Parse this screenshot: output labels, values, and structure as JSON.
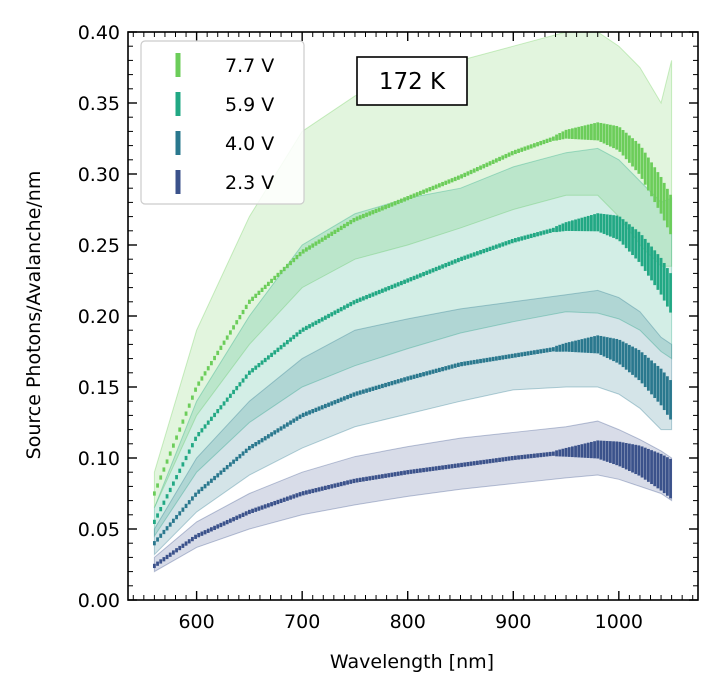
{
  "chart_data": {
    "type": "scatter",
    "xlabel": "Wavelength [nm]",
    "ylabel": "Source Photons/Avalanche/nm",
    "xlim": [
      535,
      1075
    ],
    "ylim": [
      0.0,
      0.4
    ],
    "x_ticks": [
      600,
      700,
      800,
      900,
      1000
    ],
    "y_ticks": [
      0.0,
      0.05,
      0.1,
      0.15,
      0.2,
      0.25,
      0.3,
      0.35,
      0.4
    ],
    "x_tick_labels": [
      "600",
      "700",
      "800",
      "900",
      "1000"
    ],
    "y_tick_labels": [
      "0.00",
      "0.05",
      "0.10",
      "0.15",
      "0.20",
      "0.25",
      "0.30",
      "0.35",
      "0.40"
    ],
    "annotation": "172 K",
    "legend_position": "upper-left",
    "x": [
      560,
      600,
      650,
      700,
      750,
      800,
      850,
      900,
      950,
      980,
      1000,
      1020,
      1040,
      1050
    ],
    "series": [
      {
        "name": "7.7 V",
        "color": "#6ccd5a",
        "values": [
          0.075,
          0.15,
          0.21,
          0.245,
          0.268,
          0.283,
          0.298,
          0.315,
          0.328,
          0.33,
          0.325,
          0.31,
          0.285,
          0.27
        ],
        "upper": [
          0.09,
          0.19,
          0.27,
          0.33,
          0.355,
          0.37,
          0.38,
          0.39,
          0.4,
          0.4,
          0.39,
          0.375,
          0.35,
          0.38
        ],
        "lower": [
          0.065,
          0.13,
          0.18,
          0.22,
          0.24,
          0.25,
          0.262,
          0.275,
          0.285,
          0.285,
          0.27,
          0.25,
          0.235,
          0.235
        ]
      },
      {
        "name": "5.9 V",
        "color": "#22a884",
        "values": [
          0.055,
          0.115,
          0.16,
          0.19,
          0.21,
          0.225,
          0.24,
          0.253,
          0.263,
          0.266,
          0.262,
          0.248,
          0.228,
          0.215
        ],
        "upper": [
          0.065,
          0.14,
          0.2,
          0.25,
          0.272,
          0.283,
          0.29,
          0.305,
          0.315,
          0.318,
          0.31,
          0.295,
          0.28,
          0.283
        ],
        "lower": [
          0.045,
          0.09,
          0.125,
          0.15,
          0.165,
          0.177,
          0.188,
          0.196,
          0.203,
          0.202,
          0.198,
          0.19,
          0.175,
          0.17
        ]
      },
      {
        "name": "4.0 V",
        "color": "#2a788e",
        "values": [
          0.04,
          0.075,
          0.107,
          0.13,
          0.145,
          0.156,
          0.166,
          0.172,
          0.178,
          0.18,
          0.175,
          0.165,
          0.15,
          0.14
        ],
        "upper": [
          0.05,
          0.1,
          0.14,
          0.17,
          0.19,
          0.198,
          0.205,
          0.21,
          0.215,
          0.218,
          0.213,
          0.203,
          0.185,
          0.18
        ],
        "lower": [
          0.032,
          0.062,
          0.088,
          0.107,
          0.122,
          0.131,
          0.14,
          0.148,
          0.15,
          0.15,
          0.145,
          0.135,
          0.12,
          0.12
        ]
      },
      {
        "name": "2.3 V",
        "color": "#3b528b",
        "values": [
          0.024,
          0.045,
          0.062,
          0.075,
          0.084,
          0.09,
          0.095,
          0.1,
          0.104,
          0.106,
          0.103,
          0.098,
          0.09,
          0.085
        ],
        "upper": [
          0.03,
          0.055,
          0.075,
          0.09,
          0.101,
          0.108,
          0.114,
          0.118,
          0.122,
          0.126,
          0.12,
          0.113,
          0.105,
          0.1
        ],
        "lower": [
          0.02,
          0.037,
          0.05,
          0.06,
          0.067,
          0.073,
          0.078,
          0.082,
          0.086,
          0.088,
          0.085,
          0.08,
          0.075,
          0.07
        ]
      }
    ]
  }
}
